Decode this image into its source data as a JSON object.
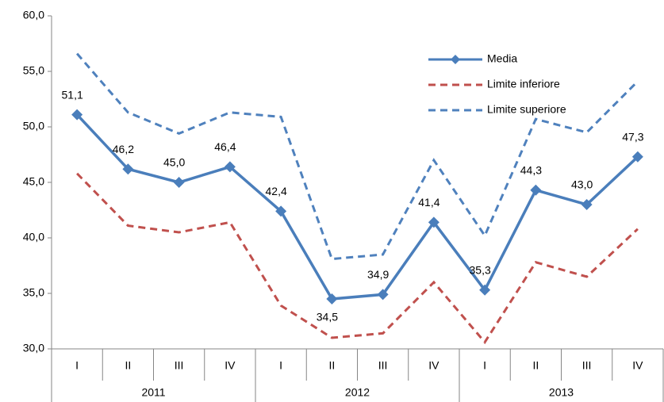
{
  "chart_data": {
    "type": "line",
    "categories": [
      "I",
      "II",
      "III",
      "IV",
      "I",
      "II",
      "III",
      "IV",
      "I",
      "II",
      "III",
      "IV"
    ],
    "groups": [
      "2011",
      "2012",
      "2013"
    ],
    "series": [
      {
        "name": "Media",
        "color": "#4a7ebb",
        "style": "solid",
        "markers": true,
        "values": [
          51.1,
          46.2,
          45.0,
          46.4,
          42.4,
          34.5,
          34.9,
          41.4,
          35.3,
          44.3,
          43.0,
          47.3
        ],
        "value_labels": [
          "51,1",
          "46,2",
          "45,0",
          "46,4",
          "42,4",
          "34,5",
          "34,9",
          "41,4",
          "35,3",
          "44,3",
          "43,0",
          "47,3"
        ]
      },
      {
        "name": "Limite inferiore",
        "color": "#c0504d",
        "style": "dashed",
        "markers": false,
        "values": [
          45.8,
          41.1,
          40.5,
          41.4,
          33.9,
          31.0,
          31.4,
          36.0,
          30.6,
          37.8,
          36.5,
          40.8
        ]
      },
      {
        "name": "Limite superiore",
        "color": "#4f81bd",
        "style": "dashed",
        "markers": false,
        "values": [
          56.6,
          51.3,
          49.4,
          51.3,
          50.9,
          38.1,
          38.5,
          47.0,
          40.2,
          50.7,
          49.5,
          54.1
        ]
      }
    ],
    "ylim": [
      30,
      60
    ],
    "yticks": [
      {
        "value": 30,
        "label": "30,0"
      },
      {
        "value": 35,
        "label": "35,0"
      },
      {
        "value": 40,
        "label": "40,0"
      },
      {
        "value": 45,
        "label": "45,0"
      },
      {
        "value": 50,
        "label": "50,0"
      },
      {
        "value": 55,
        "label": "55,0"
      },
      {
        "value": 60,
        "label": "60,0"
      }
    ],
    "grid": false,
    "legend": "upper right"
  }
}
